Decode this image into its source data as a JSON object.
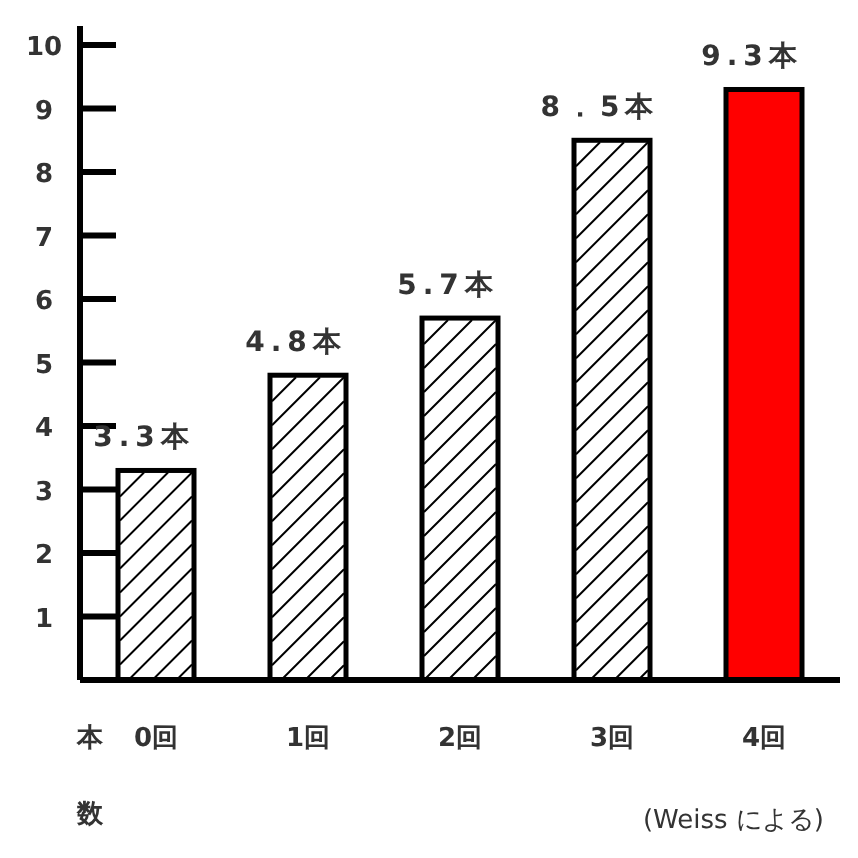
{
  "chart_data": {
    "type": "bar",
    "ylabel": "本数",
    "categories": [
      "0回",
      "1回",
      "2回",
      "3回",
      "4回"
    ],
    "values": [
      3.3,
      4.8,
      5.7,
      8.5,
      9.3
    ],
    "colors": [
      "#ffffff",
      "#ffffff",
      "#ffffff",
      "#ffffff",
      "#ff0000"
    ],
    "value_labels": [
      "3.3本",
      "4.8本",
      "5.7本",
      "8．5本",
      "9.3本"
    ],
    "ylim": [
      0,
      10.3
    ],
    "yticks": [
      1,
      2,
      3,
      4,
      5,
      6,
      7,
      8,
      9,
      10
    ],
    "annotations": [
      "(Weiss による)"
    ]
  }
}
